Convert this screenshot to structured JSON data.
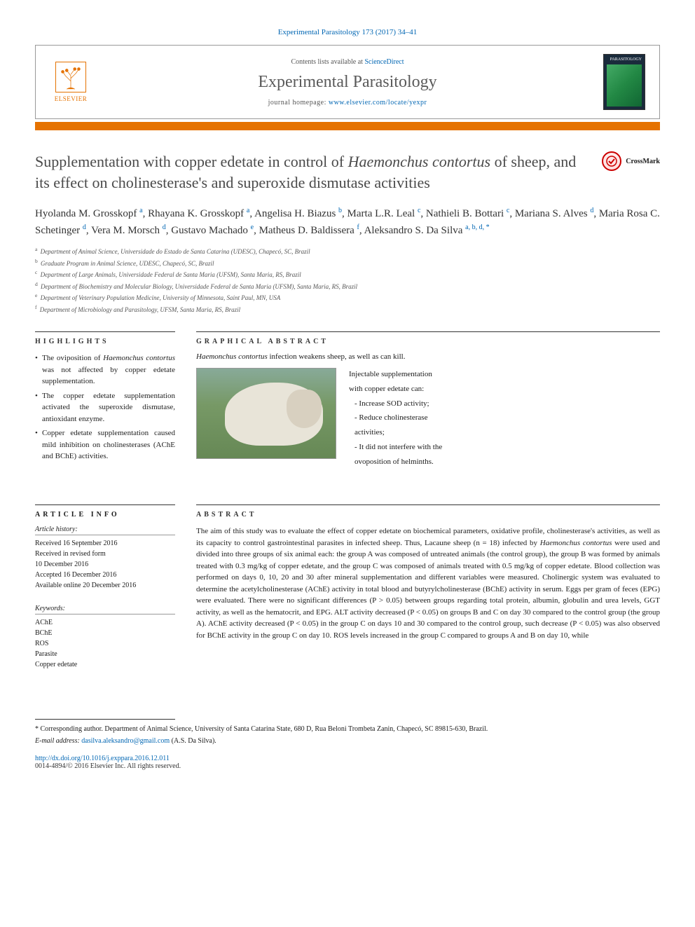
{
  "citation": "Experimental Parasitology 173 (2017) 34–41",
  "header": {
    "contents_prefix": "Contents lists available at ",
    "contents_link": "ScienceDirect",
    "journal": "Experimental Parasitology",
    "homepage_prefix": "journal homepage: ",
    "homepage_url": "www.elsevier.com/locate/yexpr",
    "elsevier": "ELSEVIER",
    "cover_label": "PARASITOLOGY"
  },
  "crossmark": "CrossMark",
  "title_pre": "Supplementation with copper edetate in control of ",
  "title_em": "Haemonchus contortus",
  "title_post": " of sheep, and its effect on cholinesterase's and superoxide dismutase activities",
  "authors": [
    {
      "name": "Hyolanda M. Grosskopf",
      "aff": "a"
    },
    {
      "name": "Rhayana K. Grosskopf",
      "aff": "a"
    },
    {
      "name": "Angelisa H. Biazus",
      "aff": "b"
    },
    {
      "name": "Marta L.R. Leal",
      "aff": "c"
    },
    {
      "name": "Nathieli B. Bottari",
      "aff": "c"
    },
    {
      "name": "Mariana S. Alves",
      "aff": "d"
    },
    {
      "name": "Maria Rosa C. Schetinger",
      "aff": "d"
    },
    {
      "name": "Vera M. Morsch",
      "aff": "d"
    },
    {
      "name": "Gustavo Machado",
      "aff": "e"
    },
    {
      "name": "Matheus D. Baldissera",
      "aff": "f"
    },
    {
      "name": "Aleksandro S. Da Silva",
      "aff": "a, b, d, *",
      "corr": true
    }
  ],
  "affiliations": [
    {
      "sup": "a",
      "text": "Department of Animal Science, Universidade do Estado de Santa Catarina (UDESC), Chapecó, SC, Brazil"
    },
    {
      "sup": "b",
      "text": "Graduate Program in Animal Science, UDESC, Chapecó, SC, Brazil"
    },
    {
      "sup": "c",
      "text": "Department of Large Animals, Universidade Federal de Santa Maria (UFSM), Santa Maria, RS, Brazil"
    },
    {
      "sup": "d",
      "text": "Department of Biochemistry and Molecular Biology, Universidade Federal de Santa Maria (UFSM), Santa Maria, RS, Brazil"
    },
    {
      "sup": "e",
      "text": "Department of Veterinary Population Medicine, University of Minnesota, Saint Paul, MN, USA"
    },
    {
      "sup": "f",
      "text": "Department of Microbiology and Parasitology, UFSM, Santa Maria, RS, Brazil"
    }
  ],
  "highlights_head": "HIGHLIGHTS",
  "highlights": [
    {
      "pre": "The oviposition of ",
      "em": "Haemonchus contortus",
      "post": " was not affected by copper edetate supplementation."
    },
    {
      "pre": "The copper edetate supplementation activated the superoxide dismutase, antioxidant enzyme.",
      "em": "",
      "post": ""
    },
    {
      "pre": "Copper edetate supplementation caused mild inhibition on cholinesterases (AChE and BChE) activities.",
      "em": "",
      "post": ""
    }
  ],
  "graphical_head": "GRAPHICAL ABSTRACT",
  "ga_caption_em": "Haemonchus contortus",
  "ga_caption_post": " infection weakens sheep, as well as can kill.",
  "ga_text": {
    "line1": "Injectable supplementation",
    "line2": "with copper edetate can:",
    "b1": "- Increase SOD activity;",
    "b2": "- Reduce cholinesterase",
    "b2b": "activities;",
    "b3": "- It did not interfere with the",
    "b3b": "ovoposition of helminths."
  },
  "article_info_head": "ARTICLE INFO",
  "history_label": "Article history:",
  "history": [
    "Received 16 September 2016",
    "Received in revised form",
    "10 December 2016",
    "Accepted 16 December 2016",
    "Available online 20 December 2016"
  ],
  "keywords_label": "Keywords:",
  "keywords": [
    "AChE",
    "BChE",
    "ROS",
    "Parasite",
    "Copper edetate"
  ],
  "abstract_head": "ABSTRACT",
  "abstract_pre": "The aim of this study was to evaluate the effect of copper edetate on biochemical parameters, oxidative profile, cholinesterase's activities, as well as its capacity to control gastrointestinal parasites in infected sheep. Thus, Lacaune sheep (n = 18) infected by ",
  "abstract_em": "Haemonchus contortus",
  "abstract_post": " were used and divided into three groups of six animal each: the group A was composed of untreated animals (the control group), the group B was formed by animals treated with 0.3 mg/kg of copper edetate, and the group C was composed of animals treated with 0.5 mg/kg of copper edetate. Blood collection was performed on days 0, 10, 20 and 30 after mineral supplementation and different variables were measured. Cholinergic system was evaluated to determine the acetylcholinesterase (AChE) activity in total blood and butyrylcholinesterase (BChE) activity in serum. Eggs per gram of feces (EPG) were evaluated. There were no significant differences (P > 0.05) between groups regarding total protein, albumin, globulin and urea levels, GGT activity, as well as the hematocrit, and EPG. ALT activity decreased (P < 0.05) on groups B and C on day 30 compared to the control group (the group A). AChE activity decreased (P < 0.05) in the group C on days 10 and 30 compared to the control group, such decrease (P < 0.05) was also observed for BChE activity in the group C on day 10. ROS levels increased in the group C compared to groups A and B on day 10, while",
  "corresponding_label": "* Corresponding author. Department of Animal Science, University of Santa Catarina State, 680 D, Rua Beloni Trombeta Zanin, Chapecó, SC 89815-630, Brazil.",
  "email_label": "E-mail address:",
  "email": "dasilva.aleksandro@gmail.com",
  "email_suffix": " (A.S. Da Silva).",
  "doi": "http://dx.doi.org/10.1016/j.exppara.2016.12.011",
  "copyright": "0014-4894/© 2016 Elsevier Inc. All rights reserved."
}
